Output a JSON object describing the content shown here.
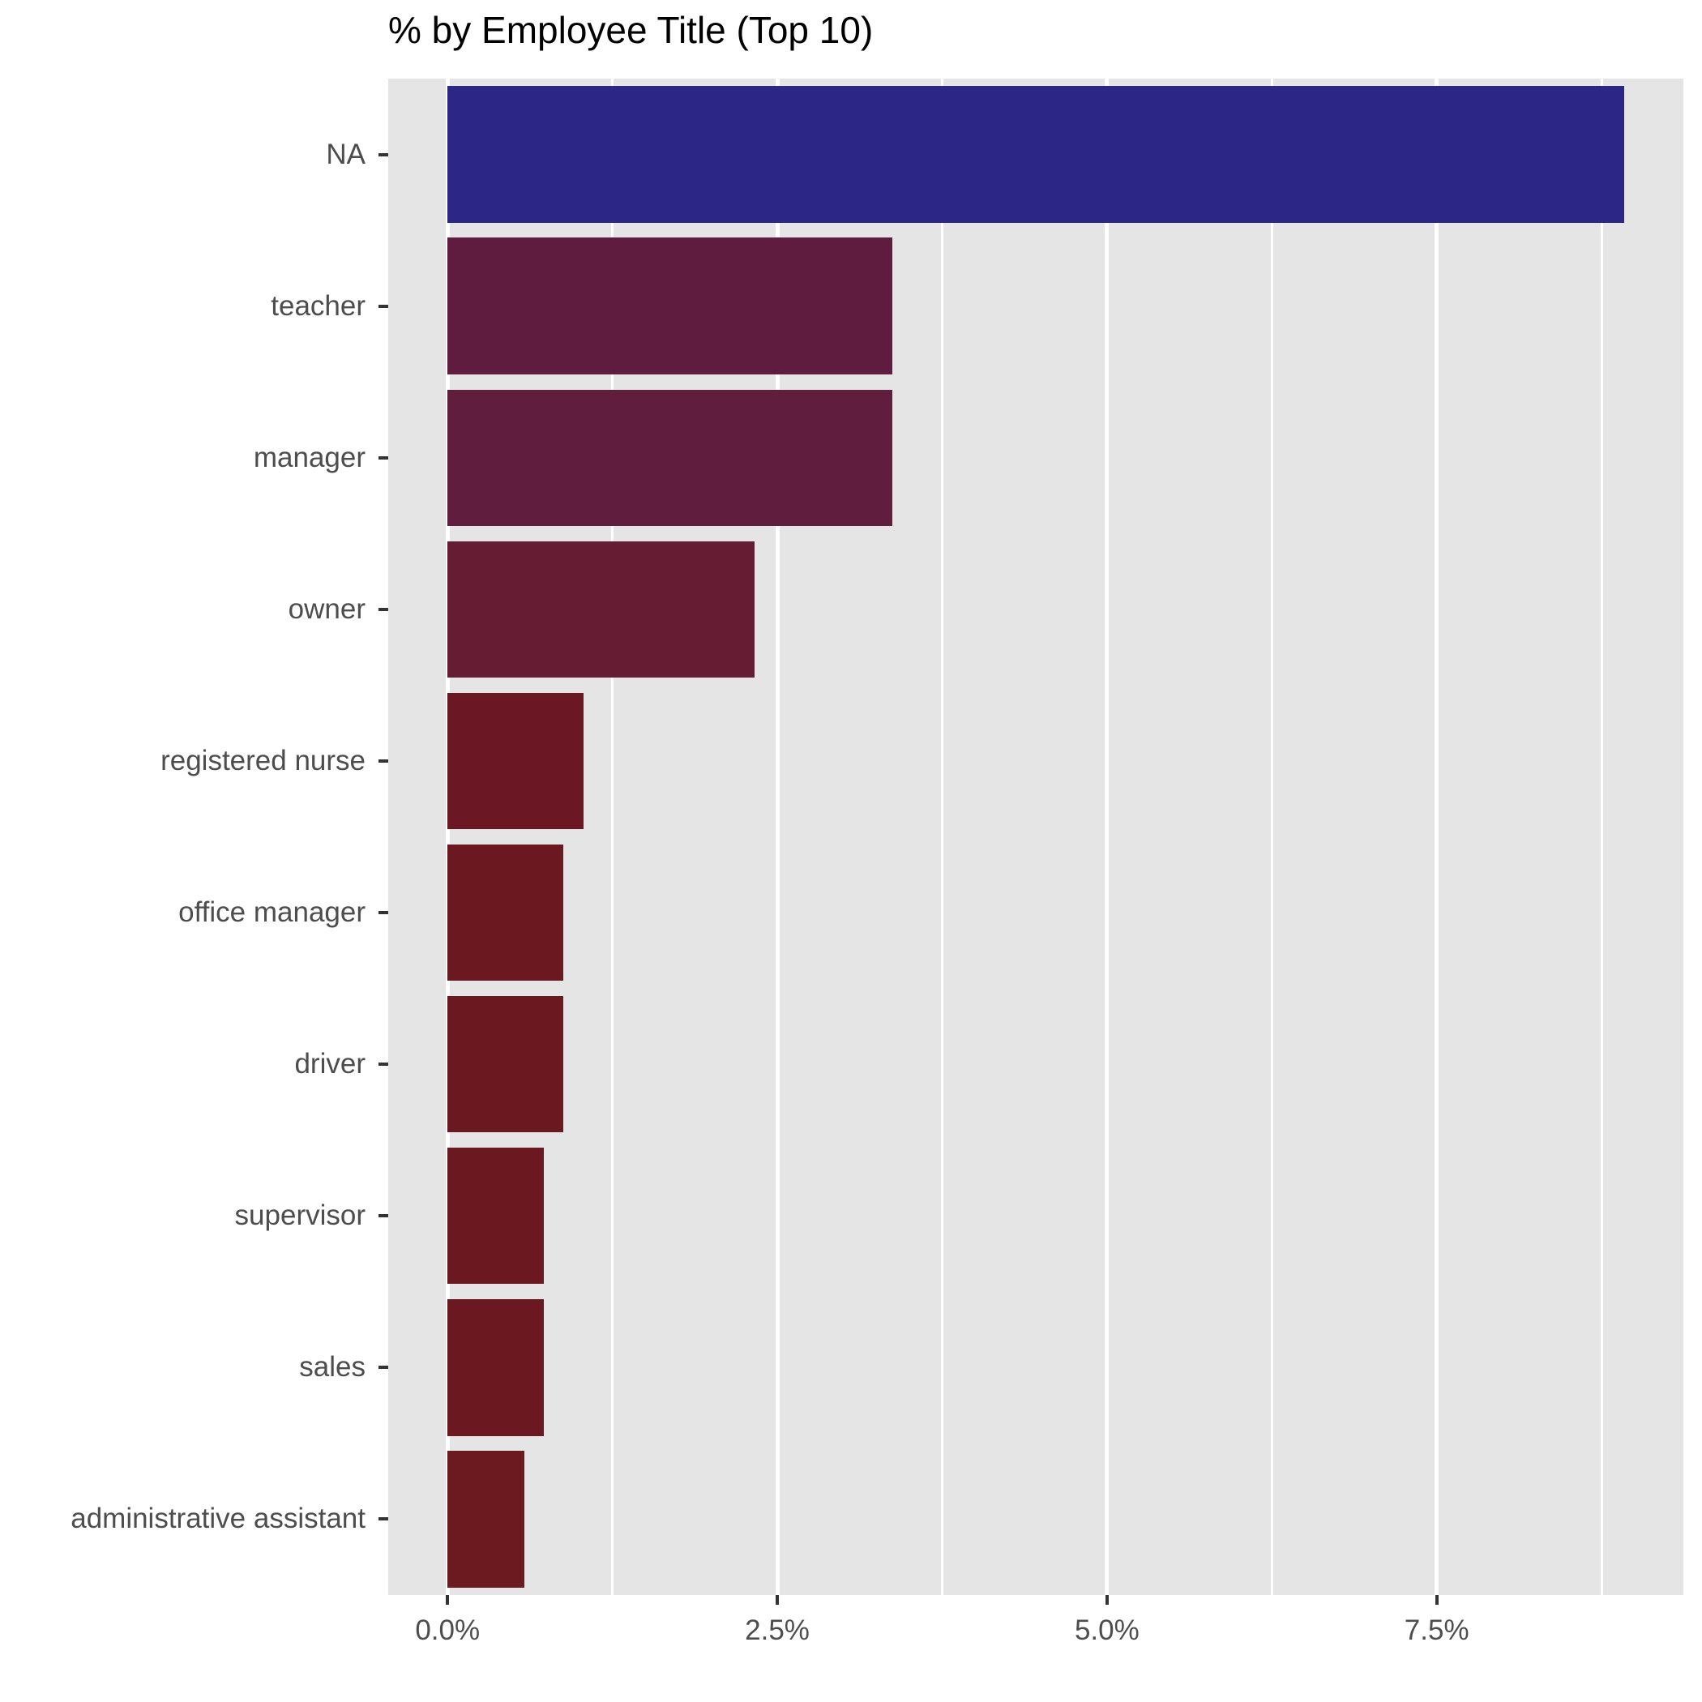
{
  "title": "% by Employee Title (Top 10)",
  "chart_data": {
    "type": "bar",
    "orientation": "horizontal",
    "title": "% by Employee Title (Top 10)",
    "xlabel": "",
    "ylabel": "",
    "categories": [
      "NA",
      "teacher",
      "manager",
      "owner",
      "registered nurse",
      "office manager",
      "driver",
      "supervisor",
      "sales",
      "administrative assistant"
    ],
    "values": [
      8.92,
      3.37,
      3.37,
      2.33,
      1.03,
      0.88,
      0.88,
      0.73,
      0.73,
      0.58
    ],
    "value_unit": "%",
    "bar_colors": [
      "#2C2687",
      "#5F1C3F",
      "#601D3E",
      "#661C33",
      "#6B1724",
      "#6B1821",
      "#6B1821",
      "#6C1820",
      "#6C1820",
      "#6C1920"
    ],
    "x_tick_values": [
      0,
      2.5,
      5.0,
      7.5
    ],
    "x_tick_labels": [
      "0.0%",
      "2.5%",
      "5.0%",
      "7.5%"
    ],
    "x_minor_grid_values": [
      1.25,
      3.75,
      6.25,
      8.75
    ],
    "xlim": [
      -0.45,
      9.37
    ],
    "grid": "on",
    "legend": "none",
    "panel_background": "#E5E5E5",
    "gridline_color": "#FFFFFF",
    "axis_text_color": "#4D4D4D",
    "tick_mark_color": "#333333",
    "bar_relative_height": 0.9
  }
}
